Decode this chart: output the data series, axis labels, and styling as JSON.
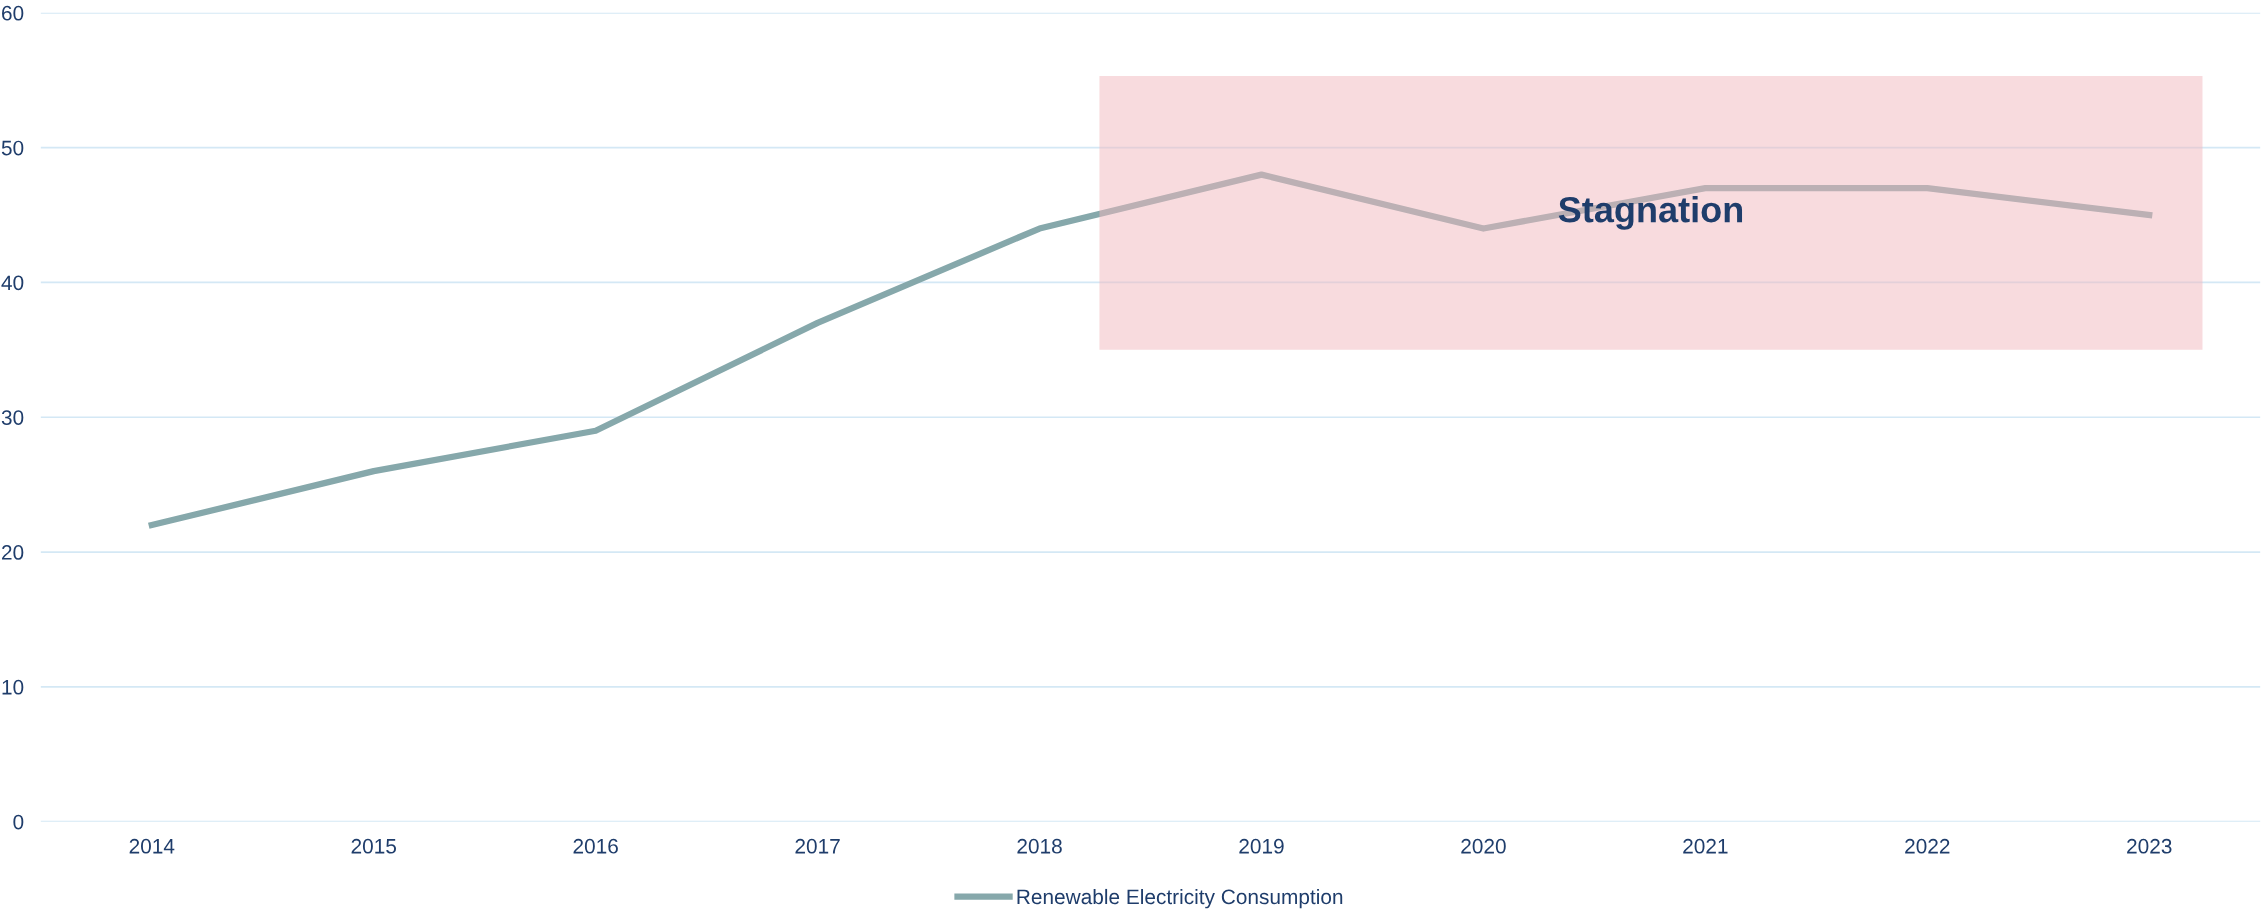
{
  "chart_data": {
    "type": "line",
    "x": [
      2014,
      2015,
      2016,
      2017,
      2018,
      2019,
      2020,
      2021,
      2022,
      2023
    ],
    "series": [
      {
        "name": "Renewable Electricity Consumption",
        "color": "#86a8ab",
        "values": [
          22,
          26,
          29,
          37,
          44,
          48,
          44,
          47,
          47,
          45
        ]
      }
    ],
    "xlim": [
      2013.5,
      2023.5
    ],
    "xticks": [
      2014,
      2015,
      2016,
      2017,
      2018,
      2019,
      2020,
      2021,
      2022,
      2023
    ],
    "ylim": [
      0,
      60
    ],
    "yticks": [
      0,
      10,
      20,
      30,
      40,
      50,
      60
    ],
    "grid": "y",
    "legend": "bottom",
    "marker": "none",
    "line_style": "solid",
    "bands": [
      {
        "axis": "x",
        "from": 2018.27,
        "to": 2023.24,
        "label": "Stagnation",
        "color": "#f2b8be"
      }
    ]
  }
}
